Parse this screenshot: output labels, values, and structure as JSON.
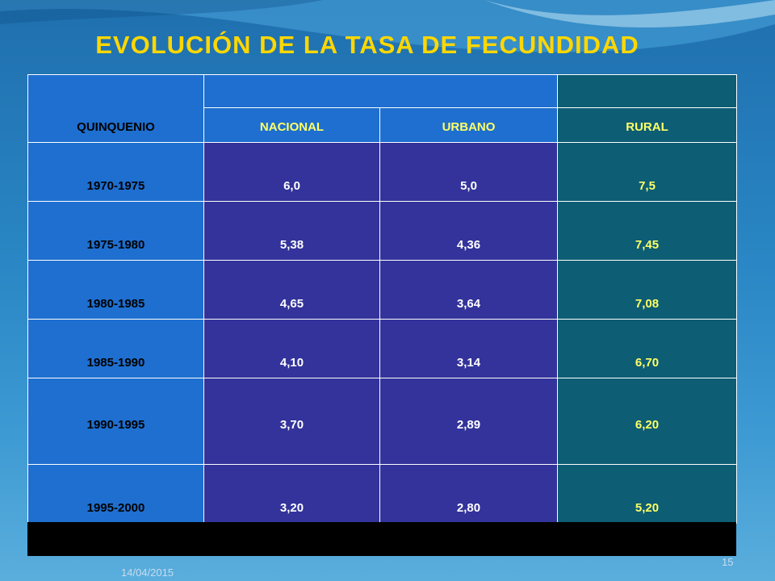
{
  "title": "EVOLUCIÓN DE LA TASA DE FECUNDIDAD",
  "table": {
    "header_row1": {
      "col1": "QUINQUENIO"
    },
    "header_row2": {
      "col2": "NACIONAL",
      "col3": "URBANO",
      "col4": "RURAL"
    },
    "rows": [
      {
        "period": "1970-1975",
        "nacional": "6,0",
        "urbano": "5,0",
        "rural": "7,5"
      },
      {
        "period": "1975-1980",
        "nacional": "5,38",
        "urbano": "4,36",
        "rural": "7,45"
      },
      {
        "period": "1980-1985",
        "nacional": "4,65",
        "urbano": "3,64",
        "rural": "7,08"
      },
      {
        "period": "1985-1990",
        "nacional": "4,10",
        "urbano": "3,14",
        "rural": "6,70"
      },
      {
        "period": "1990-1995",
        "nacional": "3,70",
        "urbano": "2,89",
        "rural": "6,20"
      },
      {
        "period": "1995-2000",
        "nacional": "3,20",
        "urbano": "2,80",
        "rural": "5,20"
      }
    ]
  },
  "footer": {
    "date": "14/04/2015",
    "page": "15"
  },
  "colors": {
    "title": "#ffd700",
    "blue": "#1e6fd0",
    "purple": "#33339b",
    "teal": "#0d5d74",
    "highlight": "#ffff66"
  }
}
